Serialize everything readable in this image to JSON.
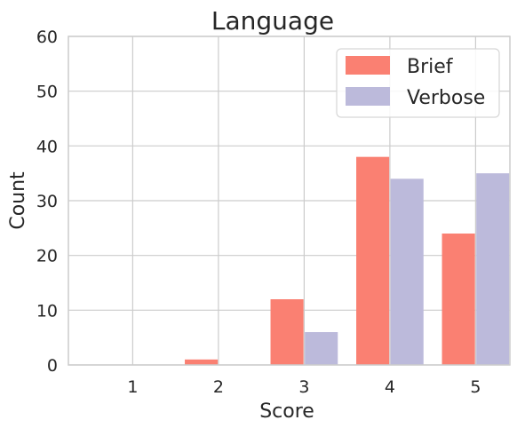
{
  "chart_data": {
    "type": "bar",
    "title": "Language",
    "xlabel": "Score",
    "ylabel": "Count",
    "categories": [
      "1",
      "2",
      "3",
      "4",
      "5"
    ],
    "series": [
      {
        "name": "Brief",
        "values": [
          0,
          1,
          12,
          38,
          24
        ],
        "color": "#fa8072"
      },
      {
        "name": "Verbose",
        "values": [
          0,
          0,
          6,
          34,
          35
        ],
        "color": "#bcbadb"
      }
    ],
    "ylim": [
      0,
      60
    ],
    "yticks": [
      "0",
      "10",
      "20",
      "30",
      "40",
      "50",
      "60"
    ],
    "grid": true,
    "legend_position": "top-right"
  }
}
